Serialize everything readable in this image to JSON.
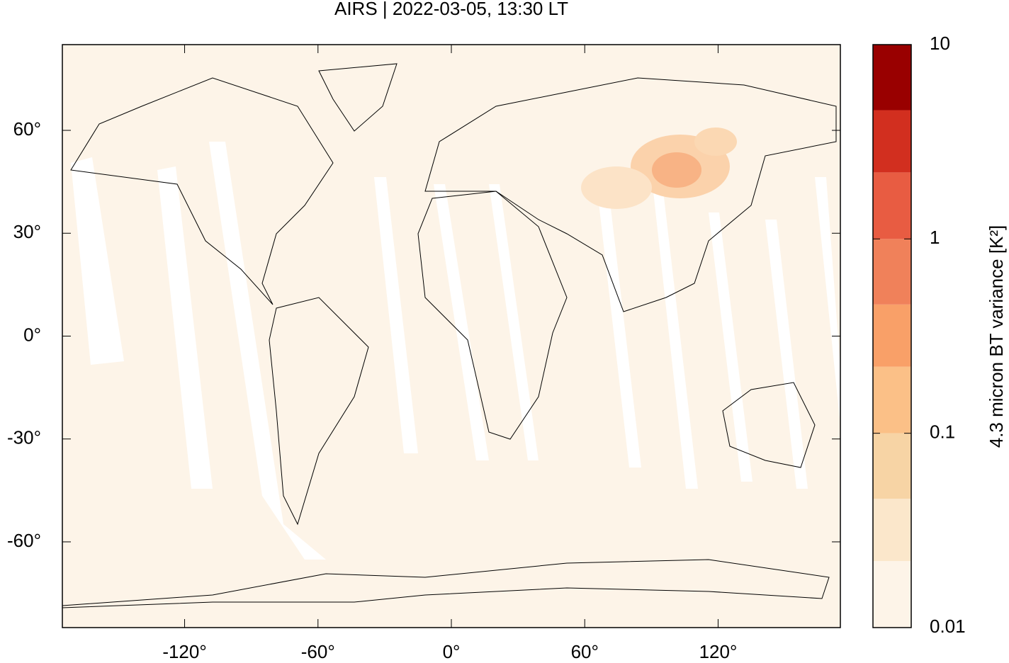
{
  "chart_data": {
    "type": "map",
    "title": "AIRS | 2022-03-05, 13:30 LT",
    "xlim": [
      -175,
      175
    ],
    "ylim": [
      -85,
      85
    ],
    "xticks": [
      {
        "value": -120,
        "label": "-120°"
      },
      {
        "value": -60,
        "label": "-60°"
      },
      {
        "value": 0,
        "label": "0°"
      },
      {
        "value": 60,
        "label": "60°"
      },
      {
        "value": 120,
        "label": "120°"
      }
    ],
    "yticks": [
      {
        "value": -60,
        "label": "-60°"
      },
      {
        "value": -30,
        "label": "-30°"
      },
      {
        "value": 0,
        "label": "0°"
      },
      {
        "value": 30,
        "label": "30°"
      },
      {
        "value": 60,
        "label": "60°"
      }
    ],
    "colorbar": {
      "label": "4.3 micron BT variance [K²]",
      "scale": "log",
      "lim": [
        0.01,
        10
      ],
      "ticks": [
        0.01,
        0.1,
        1,
        10
      ],
      "levels": [
        0.01,
        0.022,
        0.046,
        0.1,
        0.22,
        0.46,
        1,
        2.2,
        4.6,
        10
      ],
      "colors": [
        "#fdf4e8",
        "#fbe7cb",
        "#f7d4a5",
        "#fbc087",
        "#f9a068",
        "#f0815a",
        "#e85c42",
        "#d22f1f",
        "#990000"
      ]
    }
  }
}
